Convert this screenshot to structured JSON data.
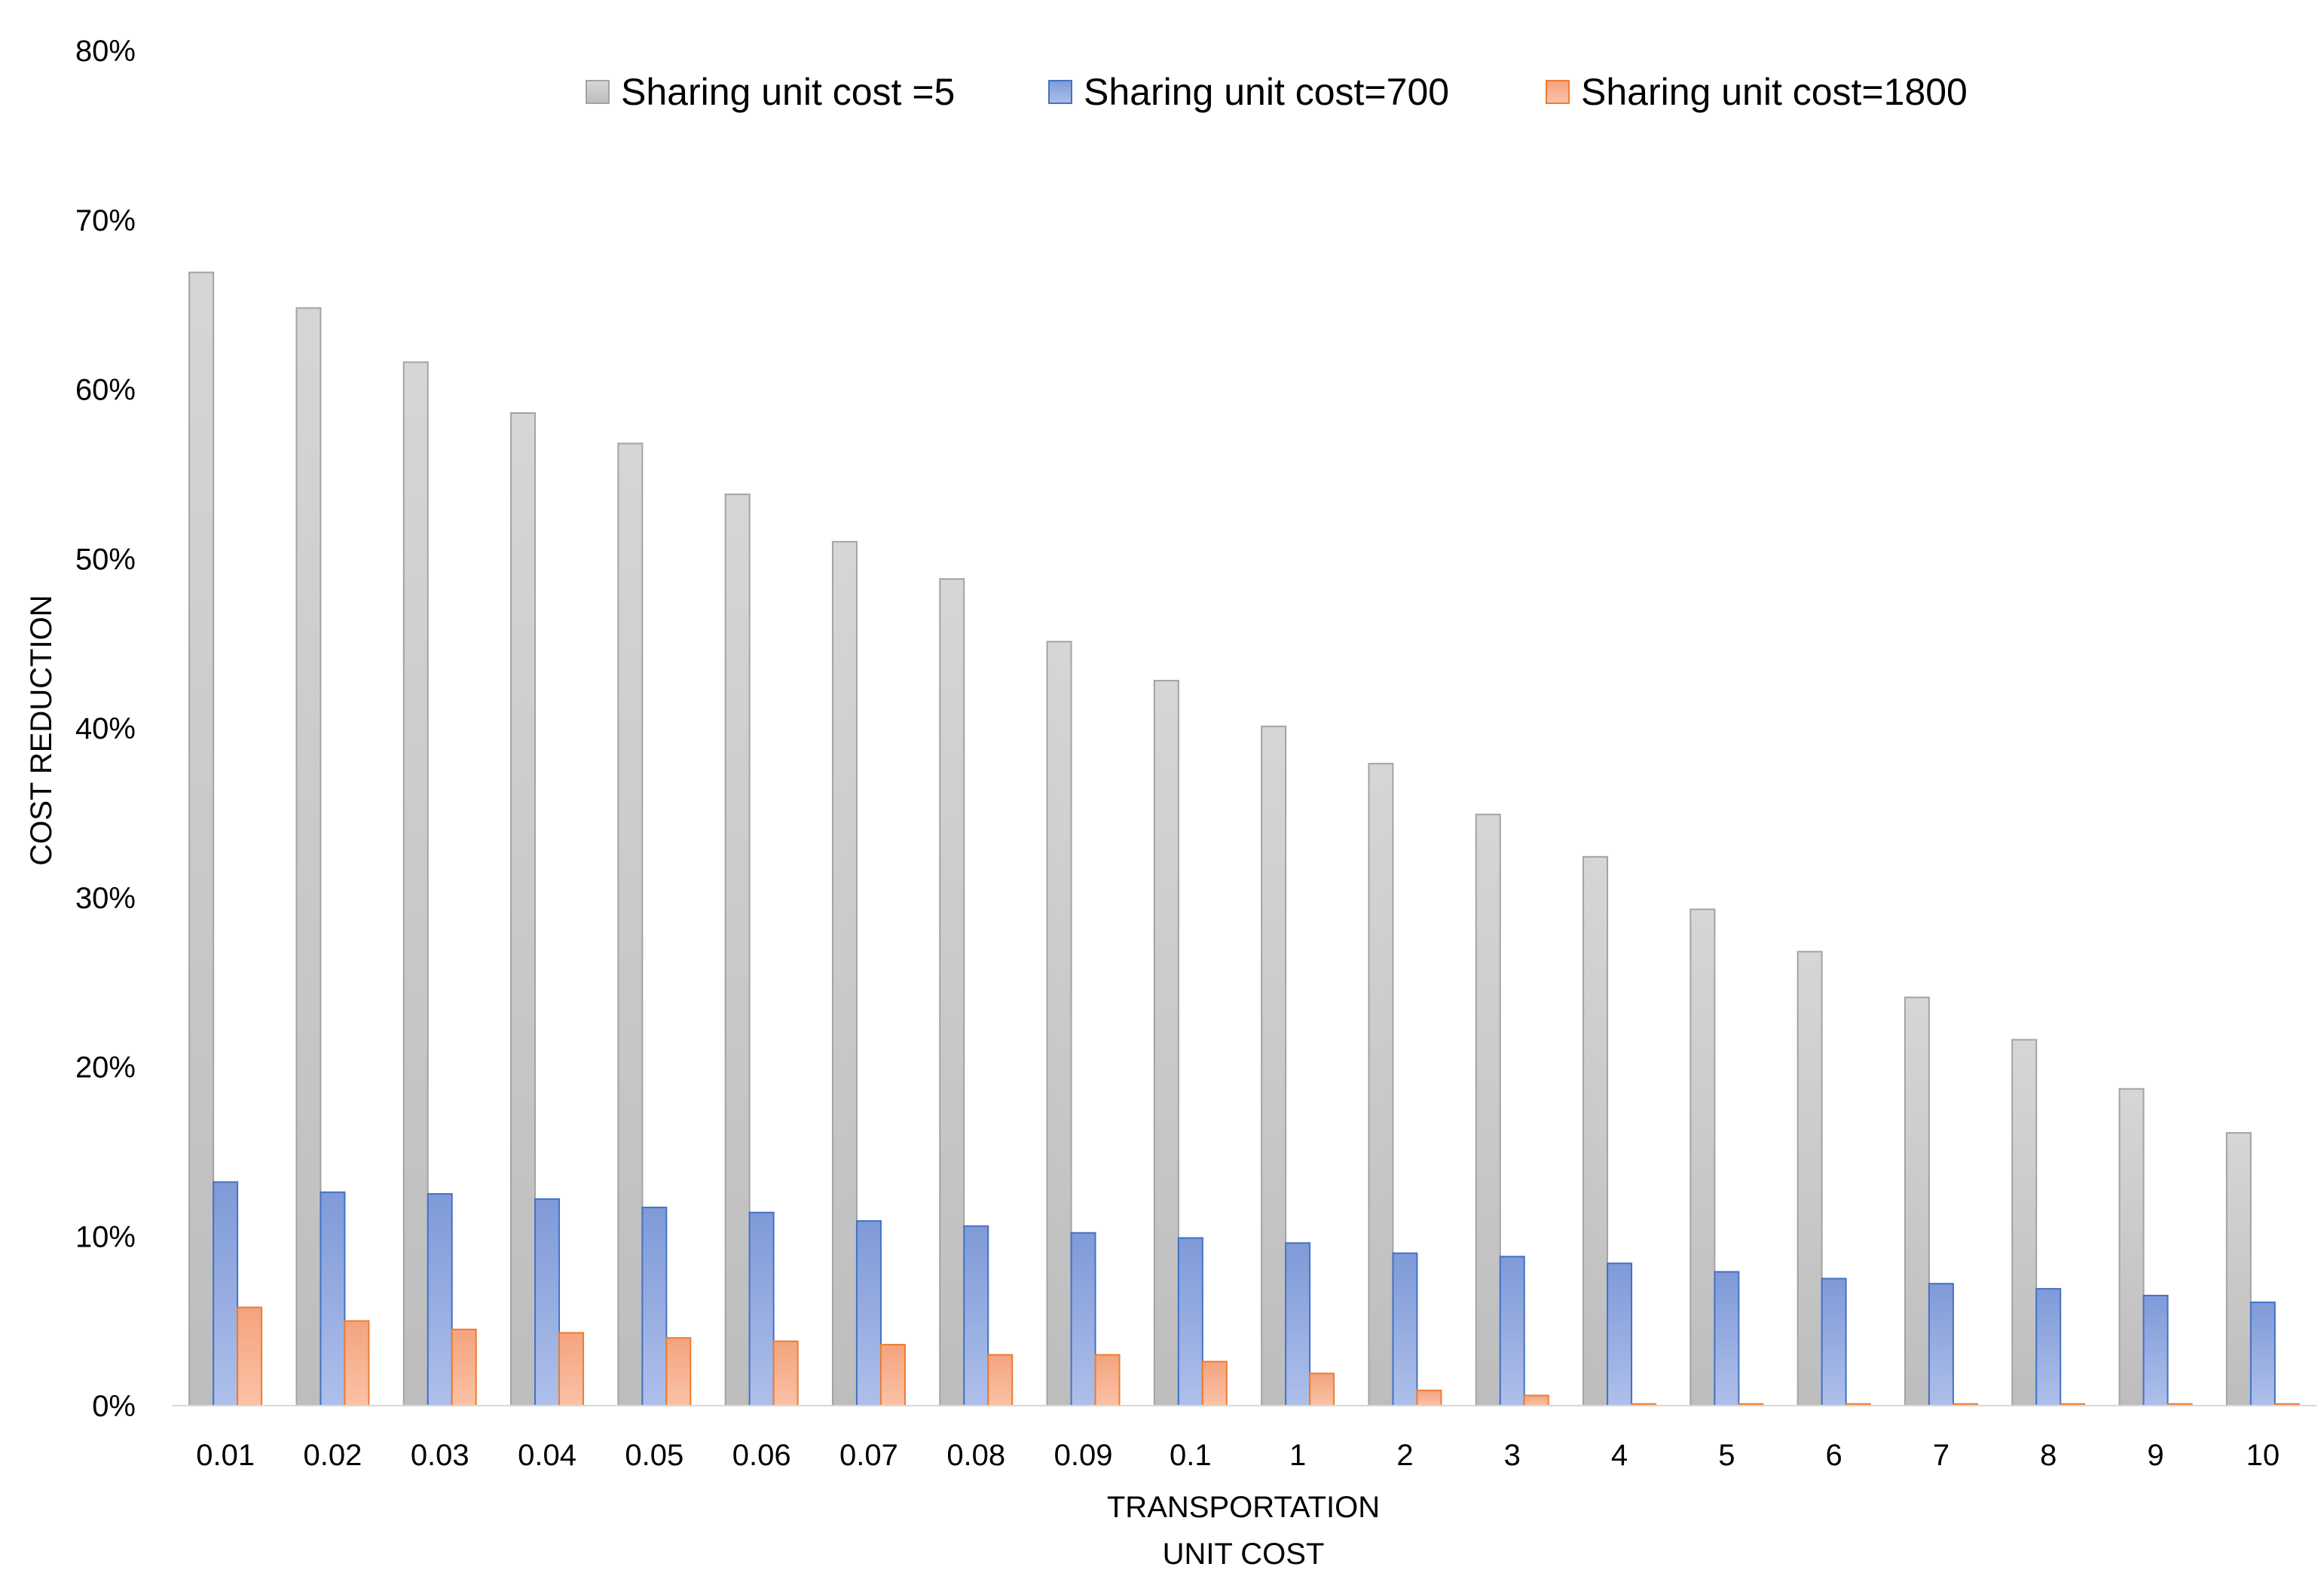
{
  "chart_data": {
    "type": "bar",
    "title": "",
    "xlabel_lines": [
      "TRANSPORTATION",
      "UNIT COST"
    ],
    "ylabel": "COST REDUCTION",
    "ylim": [
      0,
      80
    ],
    "yticks": [
      0,
      10,
      20,
      30,
      40,
      50,
      60,
      70,
      80
    ],
    "ytick_labels": [
      "0%",
      "10%",
      "20%",
      "30%",
      "40%",
      "50%",
      "60%",
      "70%",
      "80%"
    ],
    "grid": false,
    "legend_position": "top",
    "categories": [
      "0.01",
      "0.02",
      "0.03",
      "0.04",
      "0.05",
      "0.06",
      "0.07",
      "0.08",
      "0.09",
      "0.1",
      "1",
      "2",
      "3",
      "4",
      "5",
      "6",
      "7",
      "8",
      "9",
      "10"
    ],
    "series": [
      {
        "name": "Sharing unit cost =5",
        "color": "#c8c8c8",
        "values": [
          66.9,
          64.8,
          61.6,
          58.6,
          56.8,
          53.8,
          51.0,
          48.8,
          45.1,
          42.8,
          40.1,
          37.9,
          34.9,
          32.4,
          29.3,
          26.8,
          24.1,
          21.6,
          18.7,
          16.1
        ]
      },
      {
        "name": "Sharing unit cost=700",
        "color": "#8fa8df",
        "values": [
          13.2,
          12.6,
          12.5,
          12.2,
          11.7,
          11.4,
          10.9,
          10.6,
          10.2,
          9.9,
          9.6,
          9.0,
          8.8,
          8.4,
          7.9,
          7.5,
          7.2,
          6.9,
          6.5,
          6.1
        ]
      },
      {
        "name": "Sharing unit cost=1800",
        "color": "#f7b08f",
        "values": [
          5.8,
          5.0,
          4.5,
          4.3,
          4.0,
          3.8,
          3.6,
          3.0,
          3.0,
          2.6,
          1.9,
          0.9,
          0.6,
          0.1,
          0.1,
          0.1,
          0.1,
          0.1,
          0.1,
          0.1
        ]
      }
    ]
  },
  "colors": {
    "series_0_fill": "#c8c8c8",
    "series_0_stroke": "#a3a3a3",
    "series_1_fill": "#8fa8df",
    "series_1_stroke": "#4472c4",
    "series_2_fill": "#f7b08f",
    "series_2_stroke": "#ed7d31",
    "axis_line": "#d9d9d9"
  }
}
